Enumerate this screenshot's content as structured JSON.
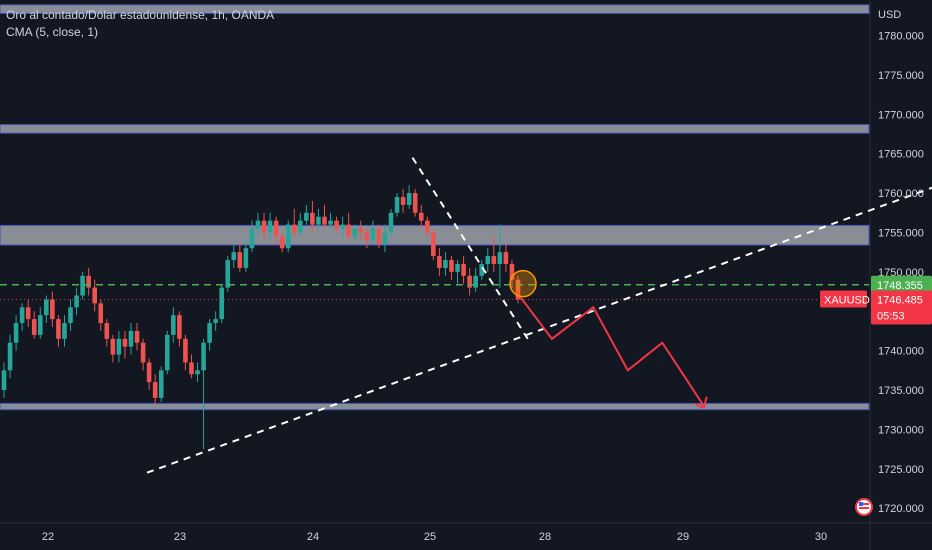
{
  "symbol": {
    "title": "Oro al contado/Dólar estadounidense, 1h, OANDA",
    "indicator": "CMA (5, close, 1)"
  },
  "currency_label": "USD",
  "price_badges": {
    "level": "1748.355",
    "ticker": "XAUUSD",
    "last": "1746.485",
    "countdown": "05:53"
  },
  "colors": {
    "background": "#131722",
    "up": "#26a69a",
    "down": "#ef5350",
    "zone_fill": "#b2b5be",
    "zone_border": "#3f51b5",
    "level_line": "#4caf50",
    "trend_lines": "#ffffff",
    "projection": "#f23645",
    "axis_text": "#d1d4dc",
    "marker": "#ff9800"
  },
  "chart_data": {
    "type": "candlestick",
    "y_axis": {
      "ticks": [
        "1780.000",
        "1775.000",
        "1770.000",
        "1765.000",
        "1760.000",
        "1755.000",
        "1750.000",
        "1745.000",
        "1740.000",
        "1735.000",
        "1730.000",
        "1725.000",
        "1720.000"
      ],
      "range": [
        1718.5,
        1784
      ]
    },
    "x_axis": {
      "ticks": [
        "22",
        "23",
        "24",
        "25",
        "28",
        "29",
        "30"
      ]
    },
    "zones": [
      {
        "from": 1782.8,
        "to": 1783.9
      },
      {
        "from": 1767.6,
        "to": 1768.7
      },
      {
        "from": 1753.4,
        "to": 1755.9
      },
      {
        "from": 1732.5,
        "to": 1733.3
      }
    ],
    "level_line": 1748.355,
    "last_price": 1746.485,
    "candles": [
      [
        1735.0,
        1737.5,
        1734.0,
        1738.5
      ],
      [
        1737.5,
        1741.0,
        1736.5,
        1742.0
      ],
      [
        1741.0,
        1743.5,
        1740.0,
        1744.5
      ],
      [
        1743.5,
        1745.5,
        1742.5,
        1746.0
      ],
      [
        1745.5,
        1744.0,
        1743.0,
        1746.5
      ],
      [
        1744.0,
        1742.0,
        1741.5,
        1745.0
      ],
      [
        1742.0,
        1744.5,
        1741.5,
        1745.5
      ],
      [
        1744.5,
        1746.5,
        1743.5,
        1747.0
      ],
      [
        1746.5,
        1744.0,
        1743.0,
        1747.5
      ],
      [
        1744.0,
        1741.5,
        1740.5,
        1744.5
      ],
      [
        1741.5,
        1743.5,
        1740.5,
        1744.5
      ],
      [
        1743.5,
        1745.5,
        1742.5,
        1746.5
      ],
      [
        1745.5,
        1747.0,
        1744.5,
        1748.0
      ],
      [
        1747.0,
        1749.5,
        1746.5,
        1750.0
      ],
      [
        1749.5,
        1748.0,
        1747.0,
        1750.5
      ],
      [
        1748.0,
        1746.0,
        1745.0,
        1749.0
      ],
      [
        1746.0,
        1743.5,
        1742.5,
        1746.5
      ],
      [
        1743.5,
        1741.5,
        1740.5,
        1744.0
      ],
      [
        1741.5,
        1739.5,
        1738.5,
        1742.0
      ],
      [
        1739.5,
        1741.5,
        1738.5,
        1742.5
      ],
      [
        1741.5,
        1740.5,
        1739.0,
        1742.5
      ],
      [
        1740.5,
        1742.5,
        1739.5,
        1743.5
      ],
      [
        1742.5,
        1741.0,
        1740.0,
        1743.5
      ],
      [
        1741.0,
        1738.5,
        1737.5,
        1741.5
      ],
      [
        1738.5,
        1736.0,
        1735.0,
        1739.0
      ],
      [
        1736.0,
        1734.0,
        1733.0,
        1737.0
      ],
      [
        1734.0,
        1737.5,
        1733.5,
        1738.0
      ],
      [
        1737.5,
        1742.0,
        1737.0,
        1742.5
      ],
      [
        1742.0,
        1744.5,
        1741.0,
        1745.5
      ],
      [
        1744.5,
        1741.5,
        1740.5,
        1745.0
      ],
      [
        1741.5,
        1738.5,
        1737.5,
        1742.0
      ],
      [
        1738.5,
        1737.0,
        1736.5,
        1739.5
      ],
      [
        1737.0,
        1737.5,
        1736.0,
        1738.5
      ],
      [
        1737.5,
        1741.0,
        1727.5,
        1741.5
      ],
      [
        1741.0,
        1743.5,
        1740.0,
        1744.0
      ],
      [
        1743.5,
        1744.0,
        1742.5,
        1745.0
      ],
      [
        1744.0,
        1748.0,
        1743.5,
        1748.5
      ],
      [
        1748.0,
        1751.5,
        1747.5,
        1752.0
      ],
      [
        1751.5,
        1752.5,
        1750.5,
        1753.5
      ],
      [
        1752.5,
        1750.5,
        1750.0,
        1753.5
      ],
      [
        1750.5,
        1753.0,
        1750.0,
        1754.0
      ],
      [
        1753.0,
        1755.5,
        1752.5,
        1756.5
      ],
      [
        1755.5,
        1756.5,
        1754.5,
        1757.5
      ],
      [
        1756.5,
        1755.0,
        1754.0,
        1757.5
      ],
      [
        1755.0,
        1756.5,
        1754.0,
        1757.5
      ],
      [
        1756.5,
        1754.5,
        1753.5,
        1757.0
      ],
      [
        1754.5,
        1753.0,
        1752.5,
        1755.0
      ],
      [
        1753.0,
        1756.0,
        1752.5,
        1756.5
      ],
      [
        1756.0,
        1755.0,
        1754.5,
        1758.0
      ],
      [
        1755.0,
        1756.5,
        1754.5,
        1757.5
      ],
      [
        1756.5,
        1757.5,
        1756.0,
        1758.5
      ],
      [
        1757.5,
        1756.0,
        1755.0,
        1759.0
      ],
      [
        1756.0,
        1757.0,
        1755.5,
        1758.0
      ],
      [
        1757.0,
        1756.0,
        1755.5,
        1758.5
      ],
      [
        1756.0,
        1756.5,
        1755.5,
        1757.5
      ],
      [
        1756.5,
        1755.5,
        1755.0,
        1757.0
      ],
      [
        1755.5,
        1756.0,
        1754.5,
        1757.0
      ],
      [
        1756.0,
        1754.5,
        1754.0,
        1757.5
      ],
      [
        1754.5,
        1755.5,
        1754.0,
        1756.0
      ],
      [
        1755.5,
        1755.0,
        1754.0,
        1756.5
      ],
      [
        1755.0,
        1754.0,
        1753.0,
        1755.5
      ],
      [
        1754.0,
        1755.5,
        1753.5,
        1756.5
      ],
      [
        1755.5,
        1753.5,
        1753.0,
        1756.0
      ],
      [
        1753.5,
        1755.0,
        1752.5,
        1756.0
      ],
      [
        1755.0,
        1757.5,
        1754.5,
        1758.0
      ],
      [
        1757.5,
        1759.5,
        1757.0,
        1760.0
      ],
      [
        1759.5,
        1758.5,
        1757.5,
        1760.5
      ],
      [
        1758.5,
        1760.0,
        1758.0,
        1761.0
      ],
      [
        1760.0,
        1757.5,
        1757.0,
        1760.5
      ],
      [
        1757.5,
        1756.5,
        1755.5,
        1758.5
      ],
      [
        1756.5,
        1755.0,
        1754.5,
        1757.0
      ],
      [
        1755.0,
        1752.0,
        1751.5,
        1755.5
      ],
      [
        1752.0,
        1750.5,
        1749.5,
        1753.0
      ],
      [
        1750.5,
        1751.5,
        1749.5,
        1752.5
      ],
      [
        1751.5,
        1750.0,
        1749.0,
        1752.0
      ],
      [
        1750.0,
        1751.0,
        1748.5,
        1751.5
      ],
      [
        1751.0,
        1749.5,
        1748.5,
        1752.0
      ],
      [
        1749.5,
        1748.0,
        1747.0,
        1750.5
      ],
      [
        1748.0,
        1749.5,
        1747.5,
        1750.5
      ],
      [
        1749.5,
        1751.0,
        1749.0,
        1751.5
      ],
      [
        1751.0,
        1752.0,
        1750.0,
        1753.0
      ],
      [
        1752.0,
        1751.0,
        1750.0,
        1754.5
      ],
      [
        1751.0,
        1752.5,
        1748.0,
        1756.0
      ],
      [
        1752.5,
        1751.0,
        1750.0,
        1753.5
      ],
      [
        1751.0,
        1749.0,
        1748.0,
        1751.5
      ],
      [
        1749.0,
        1746.5,
        1746.0,
        1749.5
      ]
    ],
    "annotations": [
      {
        "type": "trend-line",
        "style": "dashed",
        "points": [
          [
            "22.75",
            1724.5
          ],
          [
            "30.35",
            1770.5
          ]
        ]
      },
      {
        "type": "trend-line",
        "style": "dashed",
        "points": [
          [
            "24.85",
            1764.5
          ],
          [
            "25.85",
            1741.5
          ]
        ]
      },
      {
        "type": "projection-path",
        "points": [
          [
            "25.75",
            1747.5
          ],
          [
            "26.05",
            1741.5
          ],
          [
            "26.35",
            1745.5
          ],
          [
            "26.6",
            1737.5
          ],
          [
            "26.85",
            1741.0
          ],
          [
            "27.15",
            1733.0
          ]
        ]
      }
    ]
  },
  "footer_icon": "flag-icon"
}
